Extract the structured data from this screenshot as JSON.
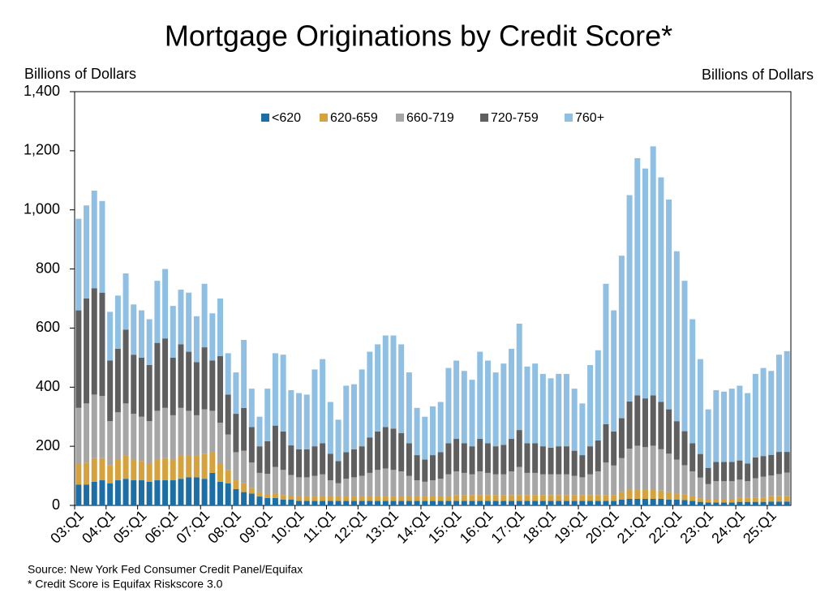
{
  "chart_data": {
    "type": "stacked_bar",
    "title": "Mortgage Originations by Credit Score*",
    "y_label": "Billions of Dollars",
    "y2_label": "Billions of Dollars",
    "source": "Source: New York Fed Consumer Credit Panel/Equifax",
    "note": "* Credit Score is Equifax Riskscore 3.0",
    "ylim": [
      0,
      1400
    ],
    "yticks": [
      0,
      200,
      400,
      600,
      800,
      {
        "value": 1000,
        "label": "1,000"
      },
      {
        "value": 1200,
        "label": "1,200"
      },
      {
        "value": 1400,
        "label": "1,400"
      }
    ],
    "categories": [
      "03:Q1",
      null,
      null,
      null,
      "04:Q1",
      null,
      null,
      null,
      "05:Q1",
      null,
      null,
      null,
      "06:Q1",
      null,
      null,
      null,
      "07:Q1",
      null,
      null,
      null,
      "08:Q1",
      null,
      null,
      null,
      "09:Q1",
      null,
      null,
      null,
      "10:Q1",
      null,
      null,
      null,
      "11:Q1",
      null,
      null,
      null,
      "12:Q1",
      null,
      null,
      null,
      "13:Q1",
      null,
      null,
      null,
      "14:Q1",
      null,
      null,
      null,
      "15:Q1",
      null,
      null,
      null,
      "16:Q1",
      null,
      null,
      null,
      "17:Q1",
      null,
      null,
      null,
      "18:Q1",
      null,
      null,
      null,
      "19:Q1",
      null,
      null,
      null,
      "20:Q1",
      null,
      null,
      null,
      "21:Q1",
      null,
      null,
      null,
      "22:Q1",
      null,
      null,
      null,
      "23:Q1",
      null,
      null,
      null,
      "24:Q1",
      null,
      null,
      null,
      "25:Q1",
      null,
      null
    ],
    "series": [
      {
        "name": "<620",
        "color": "#1b6ea6",
        "values": [
          70,
          70,
          80,
          85,
          75,
          85,
          90,
          85,
          85,
          80,
          85,
          85,
          85,
          90,
          95,
          95,
          90,
          110,
          80,
          75,
          55,
          45,
          40,
          30,
          25,
          25,
          20,
          20,
          15,
          15,
          15,
          15,
          15,
          15,
          15,
          15,
          15,
          15,
          15,
          15,
          15,
          15,
          15,
          15,
          15,
          15,
          15,
          15,
          15,
          15,
          15,
          15,
          15,
          15,
          15,
          15,
          15,
          15,
          15,
          15,
          15,
          15,
          15,
          15,
          15,
          15,
          15,
          15,
          15,
          20,
          22,
          22,
          22,
          22,
          22,
          20,
          20,
          18,
          15,
          12,
          10,
          10,
          10,
          10,
          12,
          12,
          12,
          12,
          13,
          13,
          13
        ]
      },
      {
        "name": "620-659",
        "color": "#d6a23e",
        "values": [
          70,
          75,
          80,
          75,
          60,
          70,
          80,
          70,
          65,
          60,
          70,
          75,
          70,
          80,
          75,
          75,
          85,
          70,
          60,
          45,
          30,
          30,
          20,
          15,
          12,
          15,
          15,
          13,
          15,
          15,
          15,
          15,
          15,
          15,
          15,
          15,
          15,
          15,
          15,
          15,
          15,
          15,
          15,
          15,
          15,
          15,
          15,
          15,
          20,
          20,
          20,
          20,
          20,
          20,
          20,
          20,
          20,
          20,
          20,
          20,
          20,
          20,
          20,
          20,
          20,
          20,
          20,
          20,
          20,
          25,
          30,
          30,
          30,
          30,
          28,
          25,
          20,
          18,
          15,
          12,
          12,
          12,
          12,
          12,
          15,
          15,
          15,
          15,
          18,
          18,
          18
        ]
      },
      {
        "name": "660-719",
        "color": "#a6a6a6",
        "values": [
          190,
          200,
          215,
          210,
          150,
          160,
          175,
          155,
          150,
          145,
          165,
          170,
          150,
          160,
          150,
          135,
          150,
          140,
          140,
          120,
          95,
          110,
          85,
          65,
          70,
          90,
          85,
          70,
          65,
          65,
          70,
          75,
          55,
          45,
          60,
          65,
          70,
          80,
          90,
          95,
          90,
          85,
          70,
          55,
          50,
          55,
          60,
          75,
          80,
          75,
          70,
          80,
          75,
          70,
          70,
          80,
          95,
          75,
          75,
          70,
          70,
          70,
          70,
          65,
          60,
          70,
          80,
          110,
          100,
          115,
          140,
          150,
          145,
          150,
          140,
          130,
          115,
          100,
          85,
          70,
          50,
          60,
          60,
          60,
          60,
          55,
          65,
          70,
          70,
          75,
          80
        ]
      },
      {
        "name": "720-759",
        "color": "#5f5f5f",
        "values": [
          330,
          355,
          360,
          350,
          205,
          215,
          250,
          200,
          200,
          190,
          230,
          235,
          195,
          215,
          200,
          180,
          210,
          170,
          225,
          135,
          130,
          145,
          120,
          90,
          110,
          140,
          130,
          100,
          95,
          95,
          100,
          105,
          90,
          75,
          90,
          95,
          100,
          120,
          130,
          140,
          140,
          130,
          110,
          85,
          75,
          85,
          90,
          105,
          110,
          100,
          95,
          110,
          100,
          95,
          100,
          110,
          125,
          100,
          100,
          95,
          90,
          95,
          95,
          85,
          75,
          95,
          105,
          130,
          115,
          135,
          160,
          170,
          165,
          170,
          160,
          150,
          130,
          115,
          95,
          80,
          55,
          65,
          65,
          65,
          65,
          60,
          70,
          70,
          70,
          75,
          70
        ]
      },
      {
        "name": "760+",
        "color": "#8fc0e3",
        "values": [
          310,
          315,
          330,
          310,
          165,
          180,
          190,
          170,
          160,
          155,
          210,
          235,
          175,
          185,
          200,
          155,
          215,
          160,
          195,
          140,
          140,
          230,
          130,
          100,
          178,
          245,
          260,
          187,
          190,
          185,
          260,
          285,
          175,
          140,
          225,
          220,
          260,
          290,
          295,
          310,
          315,
          300,
          240,
          160,
          145,
          165,
          170,
          255,
          265,
          245,
          225,
          295,
          280,
          250,
          275,
          305,
          360,
          260,
          270,
          245,
          235,
          245,
          245,
          210,
          175,
          275,
          305,
          475,
          410,
          550,
          698,
          803,
          778,
          843,
          760,
          710,
          575,
          509,
          420,
          321,
          198,
          243,
          238,
          248,
          253,
          238,
          283,
          298,
          284,
          329,
          341
        ]
      }
    ],
    "legend": "top-center"
  }
}
